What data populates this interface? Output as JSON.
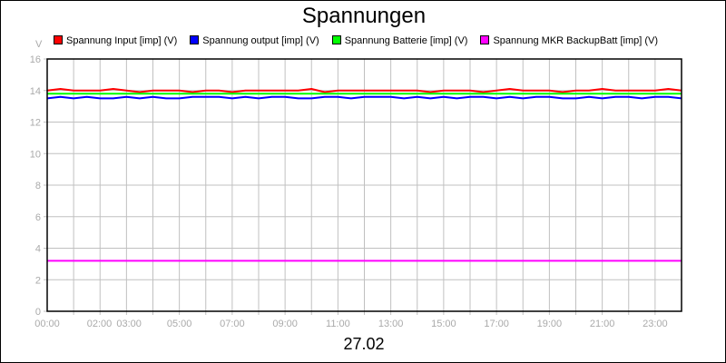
{
  "chart_data": {
    "type": "line",
    "title": "Spannungen",
    "ylabel": "V",
    "xlabel": "27.02",
    "ylim": [
      0,
      16
    ],
    "yticks": [
      0,
      2,
      4,
      6,
      8,
      10,
      12,
      14,
      16
    ],
    "xlim_hours": [
      0,
      24
    ],
    "xtick_labels": [
      {
        "hour": 0,
        "label": "00:00"
      },
      {
        "hour": 2,
        "label": "02:00"
      },
      {
        "hour": 3,
        "label": "03:00"
      },
      {
        "hour": 5,
        "label": "05:00"
      },
      {
        "hour": 7,
        "label": "07:00"
      },
      {
        "hour": 9,
        "label": "09:00"
      },
      {
        "hour": 11,
        "label": "11:00"
      },
      {
        "hour": 13,
        "label": "13:00"
      },
      {
        "hour": 15,
        "label": "15:00"
      },
      {
        "hour": 17,
        "label": "17:00"
      },
      {
        "hour": 19,
        "label": "19:00"
      },
      {
        "hour": 21,
        "label": "21:00"
      },
      {
        "hour": 23,
        "label": "23:00"
      }
    ],
    "grid": true,
    "legend": "top",
    "x_step_hours": 0.5,
    "series": [
      {
        "name": "Spannung Input [imp] (V)",
        "color": "#ff0000",
        "values": [
          14.0,
          14.1,
          14.0,
          14.0,
          14.0,
          14.1,
          14.0,
          13.9,
          14.0,
          14.0,
          14.0,
          13.9,
          14.0,
          14.0,
          13.9,
          14.0,
          14.0,
          14.0,
          14.0,
          14.0,
          14.1,
          13.9,
          14.0,
          14.0,
          14.0,
          14.0,
          14.0,
          14.0,
          14.0,
          13.9,
          14.0,
          14.0,
          14.0,
          13.9,
          14.0,
          14.1,
          14.0,
          14.0,
          14.0,
          13.9,
          14.0,
          14.0,
          14.1,
          14.0,
          14.0,
          14.0,
          14.0,
          14.1,
          14.0
        ]
      },
      {
        "name": "Spannung output [imp] (V)",
        "color": "#0000ff",
        "values": [
          13.5,
          13.6,
          13.5,
          13.6,
          13.5,
          13.5,
          13.6,
          13.5,
          13.6,
          13.5,
          13.5,
          13.6,
          13.6,
          13.6,
          13.5,
          13.6,
          13.5,
          13.6,
          13.6,
          13.5,
          13.5,
          13.6,
          13.6,
          13.5,
          13.6,
          13.6,
          13.6,
          13.5,
          13.6,
          13.5,
          13.6,
          13.5,
          13.6,
          13.6,
          13.5,
          13.6,
          13.5,
          13.6,
          13.6,
          13.5,
          13.5,
          13.6,
          13.5,
          13.6,
          13.6,
          13.5,
          13.6,
          13.6,
          13.5
        ]
      },
      {
        "name": "Spannung Batterie [imp] (V)",
        "color": "#00ff00",
        "values": [
          13.8,
          13.8,
          13.8,
          13.8,
          13.8,
          13.8,
          13.8,
          13.8,
          13.8,
          13.8,
          13.8,
          13.8,
          13.8,
          13.8,
          13.8,
          13.8,
          13.8,
          13.8,
          13.8,
          13.8,
          13.8,
          13.8,
          13.8,
          13.8,
          13.8,
          13.8,
          13.8,
          13.8,
          13.8,
          13.8,
          13.8,
          13.8,
          13.8,
          13.8,
          13.8,
          13.8,
          13.8,
          13.8,
          13.8,
          13.8,
          13.8,
          13.8,
          13.8,
          13.8,
          13.8,
          13.8,
          13.8,
          13.8,
          13.8
        ]
      },
      {
        "name": "Spannung MKR BackupBatt [imp] (V)",
        "color": "#ff00ff",
        "values": [
          3.2,
          3.2,
          3.2,
          3.2,
          3.2,
          3.2,
          3.2,
          3.2,
          3.2,
          3.2,
          3.2,
          3.2,
          3.2,
          3.2,
          3.2,
          3.2,
          3.2,
          3.2,
          3.2,
          3.2,
          3.2,
          3.2,
          3.2,
          3.2,
          3.2,
          3.2,
          3.2,
          3.2,
          3.2,
          3.2,
          3.2,
          3.2,
          3.2,
          3.2,
          3.2,
          3.2,
          3.2,
          3.2,
          3.2,
          3.2,
          3.2,
          3.2,
          3.2,
          3.2,
          3.2,
          3.2,
          3.2,
          3.2,
          3.2
        ]
      }
    ]
  }
}
